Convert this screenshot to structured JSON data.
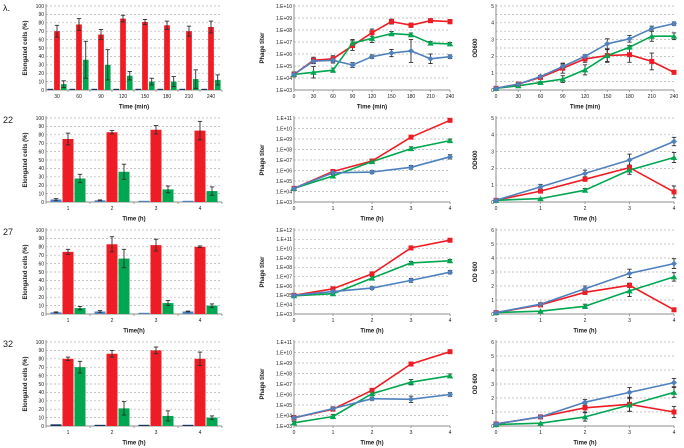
{
  "page": {
    "background": "#ffffff",
    "description": "Four-row multi-panel figure: elongated cells bar charts, phage titer log line charts, OD600 growth line charts"
  },
  "figure": {
    "rows": [
      {
        "label": "λ."
      },
      {
        "label": "22"
      },
      {
        "label": "27"
      },
      {
        "label": "32"
      }
    ]
  },
  "colors": {
    "red": "#ee1c24",
    "green": "#00a650",
    "blue": "#4f81bd",
    "dark": "#17375e",
    "grid": "#b3b3b3",
    "axis": "#8c8c8c",
    "error": "#2f2f2f",
    "text": "#1a1a1a"
  },
  "chart_data": [
    {
      "row": "λ.",
      "type": "bar",
      "ylabel": "Elongated cells (%)",
      "xlabel": "Time (min)",
      "categories": [
        "30",
        "60",
        "90",
        "120",
        "150",
        "180",
        "210",
        "240"
      ],
      "ylim": [
        0,
        100
      ],
      "ystep": 10,
      "yticklabels": [
        "0",
        "10",
        "20",
        "30",
        "40",
        "50",
        "60",
        "70",
        "80",
        "90",
        "100"
      ],
      "series": [
        {
          "name": "dark-bar",
          "color_key": "dark",
          "values": [
            1,
            1,
            1,
            1,
            1,
            1,
            1,
            1
          ]
        },
        {
          "name": "red-bar",
          "color_key": "red",
          "values": [
            70,
            78,
            66,
            85,
            81,
            77,
            70,
            75
          ],
          "errors": [
            7,
            7,
            6,
            4,
            3,
            5,
            6,
            7
          ]
        },
        {
          "name": "green-bar",
          "color_key": "green",
          "values": [
            7,
            36,
            30,
            17,
            10,
            10,
            13,
            12
          ],
          "errors": [
            4,
            22,
            18,
            5,
            4,
            6,
            11,
            6
          ]
        }
      ]
    },
    {
      "row": "λ.",
      "type": "line",
      "yscale": "log",
      "ylabel": "Phage titer",
      "xlabel": "Time (min)",
      "x": [
        0,
        30,
        60,
        90,
        120,
        150,
        180,
        210,
        240
      ],
      "ylim": [
        1000.0,
        10000000000.0
      ],
      "yticklabels": [
        "1.E+03",
        "1.E+04",
        "1.E+05",
        "1.E+06",
        "1.E+07",
        "1.E+08",
        "1.E+09",
        "1.E+10"
      ],
      "series": [
        {
          "name": "red-squares",
          "marker": "square",
          "color_key": "red",
          "values": [
            20000.0,
            300000.0,
            400000.0,
            5000000.0,
            60000000.0,
            500000000.0,
            250000000.0,
            600000000.0,
            500000000.0
          ],
          "err_factor": [
            1.6,
            1.8,
            1.8,
            2.5,
            2,
            1.6,
            1.5,
            1.4,
            1.5
          ]
        },
        {
          "name": "green-triangles",
          "marker": "triangle",
          "color_key": "green",
          "values": [
            20000.0,
            30000.0,
            45000.0,
            8000000.0,
            20000000.0,
            50000000.0,
            40000000.0,
            8000000.0,
            7000000.0
          ],
          "err_factor": [
            1.5,
            3,
            1.5,
            2,
            2.2,
            1.5,
            1.4,
            1.4,
            1.3
          ]
        },
        {
          "name": "blue-diamonds",
          "marker": "diamond",
          "color_key": "blue",
          "values": [
            20000.0,
            250000.0,
            300000.0,
            120000.0,
            600000.0,
            1200000.0,
            1800000.0,
            400000.0,
            600000.0
          ],
          "err_factor": [
            1.5,
            1.6,
            1.7,
            1.6,
            1.4,
            2,
            9,
            2.5,
            1.4
          ]
        }
      ]
    },
    {
      "row": "λ.",
      "type": "line",
      "yscale": "linear",
      "ylabel": "OD600",
      "xlabel": "Time (min)",
      "x": [
        0,
        30,
        60,
        90,
        120,
        150,
        180,
        210,
        240
      ],
      "ylim": [
        0,
        5
      ],
      "ystep": 1,
      "yminor": 0.5,
      "yticklabels": [
        "0",
        "1",
        "2",
        "3",
        "4",
        "5"
      ],
      "series": [
        {
          "name": "red-squares",
          "marker": "square",
          "color_key": "red",
          "values": [
            0.1,
            0.35,
            0.75,
            1.3,
            1.85,
            2.05,
            2.1,
            1.7,
            1.05
          ],
          "errors": [
            0.02,
            0.05,
            0.08,
            0.3,
            0.2,
            0.4,
            0.45,
            0.5,
            0.1
          ]
        },
        {
          "name": "green-triangles",
          "marker": "triangle",
          "color_key": "green",
          "values": [
            0.1,
            0.25,
            0.45,
            0.65,
            1.2,
            2.05,
            2.55,
            3.2,
            3.2
          ],
          "errors": [
            0.02,
            0.03,
            0.05,
            0.2,
            0.3,
            0.35,
            0.1,
            0.3,
            0.2
          ]
        },
        {
          "name": "blue-diamonds",
          "marker": "diamond",
          "color_key": "blue",
          "values": [
            0.1,
            0.35,
            0.8,
            1.4,
            2.0,
            2.75,
            3.05,
            3.65,
            3.95
          ],
          "errors": [
            0.02,
            0.05,
            0.05,
            0.15,
            0.1,
            0.3,
            0.2,
            0.15,
            0.1
          ]
        }
      ]
    },
    {
      "row": "22",
      "type": "bar",
      "ylabel": "Elongated cells (%)",
      "xlabel": "Time (h)",
      "categories": [
        "1",
        "2",
        "3",
        "4"
      ],
      "ylim": [
        0,
        100
      ],
      "ystep": 10,
      "yticklabels": [
        "0",
        "10",
        "20",
        "30",
        "40",
        "50",
        "60",
        "70",
        "80",
        "90",
        "100"
      ],
      "series": [
        {
          "name": "blue-bar",
          "color_key": "blue",
          "values": [
            3,
            2,
            1,
            1
          ],
          "errors": [
            1,
            0.5,
            0.3,
            0.3
          ]
        },
        {
          "name": "red-bar",
          "color_key": "red",
          "values": [
            75,
            83,
            86,
            85
          ],
          "errors": [
            7,
            2,
            5,
            11
          ]
        },
        {
          "name": "green-bar",
          "color_key": "green",
          "values": [
            28,
            36,
            15,
            13
          ],
          "errors": [
            5,
            9,
            4,
            5
          ]
        }
      ]
    },
    {
      "row": "22",
      "type": "line",
      "yscale": "log",
      "ylabel": "Phage titer",
      "xlabel": "Time (h)",
      "x": [
        0,
        1,
        2,
        3,
        4
      ],
      "ylim": [
        1000.0,
        100000000000.0
      ],
      "yticklabels": [
        "1.E+03",
        "1.E+04",
        "1.E+05",
        "1.E+06",
        "1.E+07",
        "1.E+08",
        "1.E+09",
        "1.E+10",
        "1.E+11"
      ],
      "series": [
        {
          "name": "red-squares",
          "marker": "square",
          "color_key": "red",
          "values": [
            20000.0,
            800000.0,
            8000000.0,
            1500000000.0,
            60000000000.0
          ],
          "err_factor": [
            1.4,
            1.3,
            1.4,
            1.4,
            1.3
          ]
        },
        {
          "name": "green-triangles",
          "marker": "triangle",
          "color_key": "green",
          "values": [
            20000.0,
            300000.0,
            7000000.0,
            120000000.0,
            700000000.0
          ],
          "err_factor": [
            1.4,
            1.3,
            1.5,
            1.5,
            1.4
          ]
        },
        {
          "name": "blue-diamonds",
          "marker": "diamond",
          "color_key": "blue",
          "values": [
            20000.0,
            600000.0,
            700000.0,
            2000000.0,
            20000000.0
          ],
          "err_factor": [
            1.4,
            1.4,
            1.4,
            1.5,
            1.6
          ]
        }
      ]
    },
    {
      "row": "22",
      "type": "line",
      "yscale": "linear",
      "ylabel": "OD600",
      "xlabel": "Time (h)",
      "x": [
        0,
        1,
        2,
        3,
        4
      ],
      "ylim": [
        0,
        5
      ],
      "ystep": 1,
      "yticklabels": [
        "0",
        "1",
        "2",
        "3",
        "4",
        "5"
      ],
      "series": [
        {
          "name": "red-squares",
          "marker": "square",
          "color_key": "red",
          "values": [
            0.1,
            0.65,
            1.35,
            2.05,
            0.6
          ],
          "errors": [
            0.02,
            0.1,
            0.1,
            0.15,
            0.35
          ]
        },
        {
          "name": "green-triangles",
          "marker": "triangle",
          "color_key": "green",
          "values": [
            0.1,
            0.2,
            0.7,
            1.9,
            2.65
          ],
          "errors": [
            0.02,
            0.03,
            0.1,
            0.25,
            0.3
          ]
        },
        {
          "name": "blue-diamonds",
          "marker": "diamond",
          "color_key": "blue",
          "values": [
            0.1,
            0.9,
            1.7,
            2.5,
            3.6
          ],
          "errors": [
            0.02,
            0.15,
            0.2,
            0.35,
            0.25
          ]
        }
      ]
    },
    {
      "row": "27",
      "type": "bar",
      "ylabel": "Elongated cells (%)",
      "xlabel": "Time(h)",
      "categories": [
        "1",
        "2",
        "3",
        "4"
      ],
      "ylim": [
        0,
        100
      ],
      "ystep": 10,
      "yticklabels": [
        "0",
        "10",
        "20",
        "30",
        "40",
        "50",
        "60",
        "70",
        "80",
        "90",
        "100"
      ],
      "series": [
        {
          "name": "blue-bar",
          "color_key": "blue",
          "values": [
            2,
            3,
            1,
            3
          ],
          "errors": [
            0.5,
            1,
            0.3,
            0.5
          ]
        },
        {
          "name": "red-bar",
          "color_key": "red",
          "values": [
            74,
            83,
            82,
            80
          ],
          "errors": [
            3,
            9,
            7,
            1
          ]
        },
        {
          "name": "green-bar",
          "color_key": "green",
          "values": [
            7,
            66,
            13,
            10
          ],
          "errors": [
            2,
            11,
            3,
            2
          ]
        }
      ]
    },
    {
      "row": "27",
      "type": "line",
      "yscale": "log",
      "ylabel": "Phage titer",
      "xlabel": "Time (h)",
      "x": [
        0,
        1,
        2,
        3,
        4
      ],
      "ylim": [
        1000.0,
        1000000000000.0
      ],
      "yticklabels": [
        "1.E+03",
        "1.E+04",
        "1.E+05",
        "1.E+06",
        "1.E+07",
        "1.E+08",
        "1.E+09",
        "1.E+10",
        "1.E+11",
        "1.E+12"
      ],
      "series": [
        {
          "name": "red-squares",
          "marker": "square",
          "color_key": "red",
          "values": [
            100000.0,
            500000.0,
            20000000.0,
            12000000000.0,
            80000000000.0
          ],
          "err_factor": [
            1.4,
            1.4,
            1.6,
            1.3,
            1.3
          ]
        },
        {
          "name": "green-triangles",
          "marker": "triangle",
          "color_key": "green",
          "values": [
            90000.0,
            150000.0,
            7000000.0,
            300000000.0,
            500000000.0
          ],
          "err_factor": [
            1.5,
            1.4,
            1.5,
            1.4,
            1.4
          ]
        },
        {
          "name": "blue-diamonds",
          "marker": "diamond",
          "color_key": "blue",
          "values": [
            100000.0,
            250000.0,
            600000.0,
            4000000.0,
            30000000.0
          ],
          "err_factor": [
            1.4,
            1.4,
            1.4,
            1.6,
            1.5
          ]
        }
      ]
    },
    {
      "row": "27",
      "type": "line",
      "yscale": "linear",
      "ylabel": "OD 600",
      "xlabel": "Time (h)",
      "x": [
        0,
        1,
        2,
        3,
        4
      ],
      "ylim": [
        0,
        6
      ],
      "ystep": 1,
      "yticklabels": [
        "0",
        "1",
        "2",
        "3",
        "4",
        "5",
        "6"
      ],
      "series": [
        {
          "name": "red-squares",
          "marker": "square",
          "color_key": "red",
          "values": [
            0.1,
            0.65,
            1.55,
            2.05,
            0.3
          ],
          "errors": [
            0.02,
            0.05,
            0.15,
            0.15,
            0.05
          ]
        },
        {
          "name": "green-triangles",
          "marker": "triangle",
          "color_key": "green",
          "values": [
            0.1,
            0.2,
            0.55,
            1.65,
            2.65
          ],
          "errors": [
            0.02,
            0.03,
            0.15,
            0.4,
            0.3
          ]
        },
        {
          "name": "blue-diamonds",
          "marker": "diamond",
          "color_key": "blue",
          "values": [
            0.1,
            0.7,
            1.8,
            2.9,
            3.6
          ],
          "errors": [
            0.02,
            0.1,
            0.2,
            0.3,
            0.35
          ]
        }
      ]
    },
    {
      "row": "32",
      "type": "bar",
      "ylabel": "Elongated cells (%)",
      "xlabel": "Time (h)",
      "categories": [
        "1",
        "2",
        "3",
        "4"
      ],
      "ylim": [
        0,
        100
      ],
      "ystep": 10,
      "yticklabels": [
        "0",
        "10",
        "20",
        "30",
        "40",
        "50",
        "60",
        "70",
        "80",
        "90",
        "100"
      ],
      "series": [
        {
          "name": "blue-bar",
          "color_key": "dark",
          "values": [
            2,
            1,
            1,
            1
          ]
        },
        {
          "name": "red-bar",
          "color_key": "red",
          "values": [
            80,
            86,
            90,
            80
          ],
          "errors": [
            2,
            4,
            4,
            8
          ]
        },
        {
          "name": "green-bar",
          "color_key": "green",
          "values": [
            70,
            21,
            12,
            10
          ],
          "errors": [
            7,
            8,
            6,
            2
          ]
        }
      ]
    },
    {
      "row": "32",
      "type": "line",
      "yscale": "log",
      "ylabel": "Phage titer",
      "xlabel": "Time (h)",
      "x": [
        0,
        1,
        2,
        3,
        4
      ],
      "ylim": [
        1000.0,
        100000000000.0
      ],
      "yticklabels": [
        "1.E+03",
        "1.E+04",
        "1.E+05",
        "1.E+06",
        "1.E+07",
        "1.E+08",
        "1.E+09",
        "1.E+10",
        "1.E+11"
      ],
      "series": [
        {
          "name": "red-squares",
          "marker": "square",
          "color_key": "red",
          "values": [
            6000.0,
            40000.0,
            2500000.0,
            800000000.0,
            12000000000.0
          ],
          "err_factor": [
            1.6,
            1.5,
            1.5,
            1.4,
            1.3
          ]
        },
        {
          "name": "green-triangles",
          "marker": "triangle",
          "color_key": "green",
          "values": [
            2000.0,
            8000.0,
            1200000.0,
            15000000.0,
            60000000.0
          ],
          "err_factor": [
            1.4,
            1.6,
            1.4,
            1.8,
            1.5
          ]
        },
        {
          "name": "blue-diamonds",
          "marker": "diamond",
          "color_key": "blue",
          "values": [
            6000.0,
            45000.0,
            400000.0,
            350000.0,
            1000000.0
          ],
          "err_factor": [
            1.6,
            1.5,
            1.4,
            2,
            1.5
          ]
        }
      ]
    },
    {
      "row": "32",
      "type": "line",
      "yscale": "linear",
      "ylabel": "OD 600",
      "xlabel": "Time (h)",
      "x": [
        0,
        1,
        2,
        3,
        4
      ],
      "ylim": [
        0,
        6
      ],
      "ystep": 1,
      "yticklabels": [
        "0",
        "1",
        "2",
        "3",
        "4",
        "5",
        "6"
      ],
      "series": [
        {
          "name": "red-squares",
          "marker": "square",
          "color_key": "red",
          "values": [
            0.15,
            0.65,
            1.3,
            1.55,
            1.0
          ],
          "errors": [
            0.03,
            0.05,
            0.3,
            0.5,
            0.4
          ]
        },
        {
          "name": "green-triangles",
          "marker": "triangle",
          "color_key": "green",
          "values": [
            0.1,
            0.2,
            0.65,
            1.5,
            2.4
          ],
          "errors": [
            0.02,
            0.03,
            0.3,
            0.45,
            0.35
          ]
        },
        {
          "name": "blue-diamonds",
          "marker": "diamond",
          "color_key": "blue",
          "values": [
            0.15,
            0.65,
            1.7,
            2.4,
            3.1
          ],
          "errors": [
            0.03,
            0.05,
            0.2,
            0.35,
            0.3
          ]
        }
      ]
    }
  ]
}
